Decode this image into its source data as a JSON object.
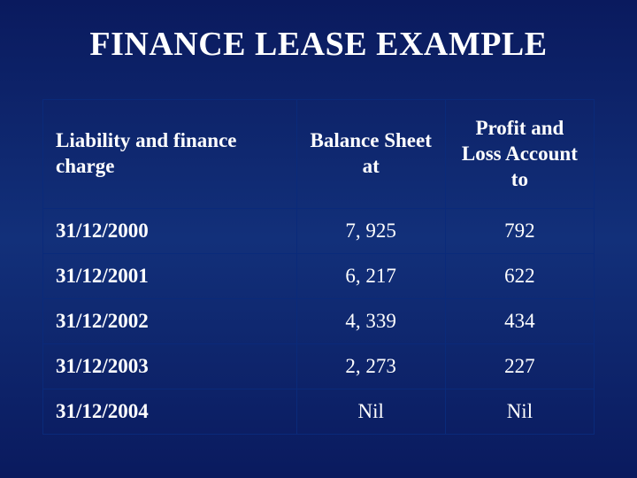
{
  "slide": {
    "title": "FINANCE LEASE EXAMPLE",
    "background_gradient": [
      "#0a1a5e",
      "#12307a",
      "#0a1a5e"
    ],
    "text_color": "#ffffff",
    "border_color": "#0a2a7a",
    "title_fontsize": 38,
    "cell_fontsize": 23,
    "font_family": "Times New Roman"
  },
  "table": {
    "type": "table",
    "column_widths_pct": [
      46,
      27,
      27
    ],
    "columns": [
      {
        "label": "Liability and finance charge",
        "align": "left"
      },
      {
        "label": "Balance Sheet at",
        "align": "center"
      },
      {
        "label": "Profit and Loss Account to",
        "align": "center"
      }
    ],
    "rows": [
      {
        "date": "31/12/2000",
        "balance": "7, 925",
        "pl": "792"
      },
      {
        "date": "31/12/2001",
        "balance": "6, 217",
        "pl": "622"
      },
      {
        "date": "31/12/2002",
        "balance": "4, 339",
        "pl": "434"
      },
      {
        "date": "31/12/2003",
        "balance": "2, 273",
        "pl": "227"
      },
      {
        "date": "31/12/2004",
        "balance": "Nil",
        "pl": "Nil"
      }
    ]
  }
}
